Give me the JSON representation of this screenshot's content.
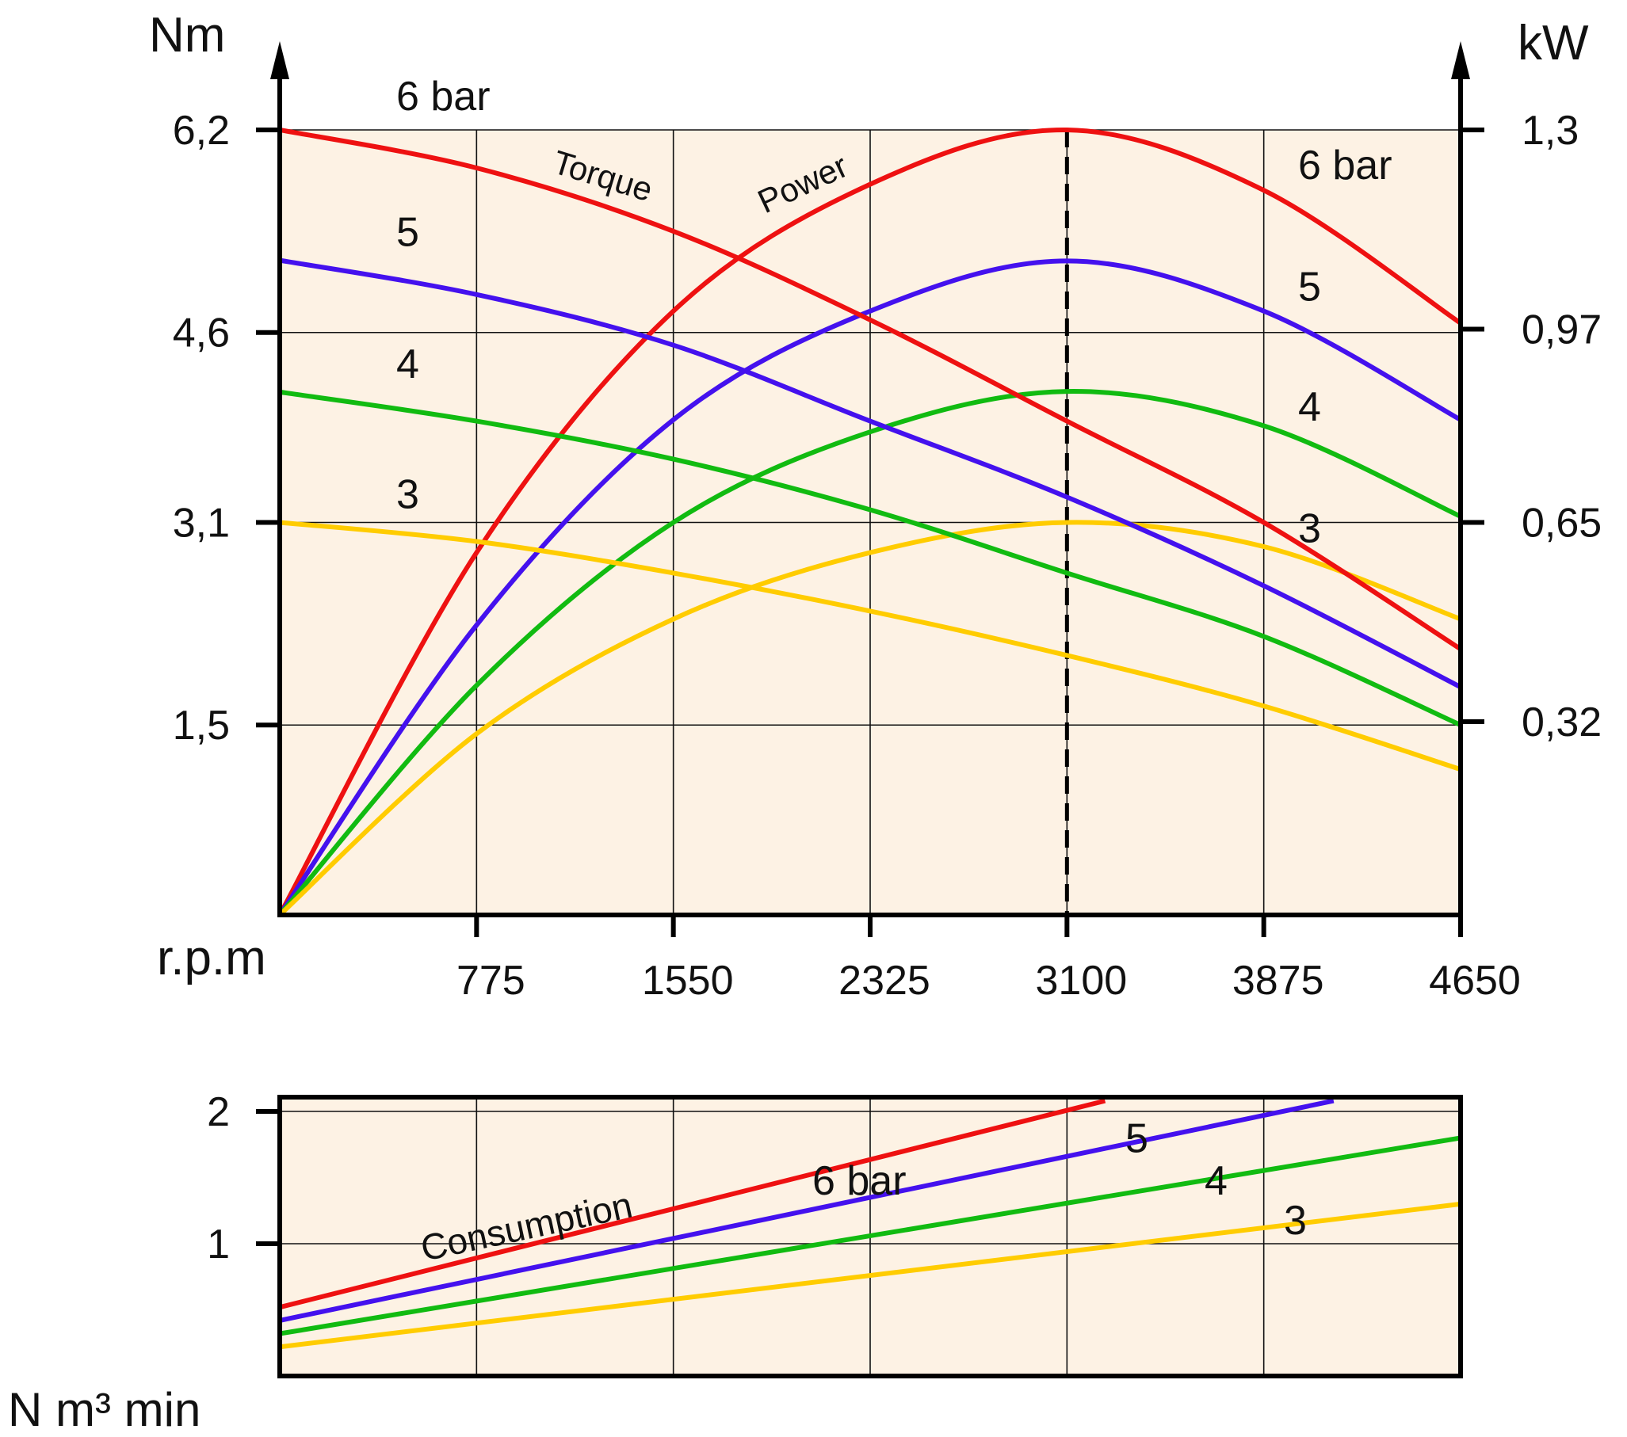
{
  "chart_data": [
    {
      "type": "line",
      "xlabel": "r.p.m",
      "x_ticks": [
        "775",
        "1550",
        "2325",
        "3100",
        "3875",
        "4650"
      ],
      "xlim": [
        0,
        4650
      ],
      "y_left_label": "Nm",
      "y_left_ticks": [
        "6,2",
        "4,6",
        "3,1",
        "1,5"
      ],
      "y_left_tick_values": [
        6.2,
        4.6,
        3.1,
        1.5
      ],
      "ylim_left": [
        0,
        6.2
      ],
      "y_right_label": "kW",
      "y_right_ticks": [
        "1,3",
        "0,97",
        "0,65",
        "0,32"
      ],
      "y_right_tick_values": [
        1.3,
        0.97,
        0.65,
        0.32
      ],
      "ylim_right": [
        0,
        1.3
      ],
      "grid": true,
      "reference_line_x": 3100,
      "curve_labels": {
        "torque": "Torque",
        "power": "Power"
      },
      "torque_series": [
        {
          "name": "6 bar",
          "color": "#ee1111",
          "x": [
            0,
            775,
            1550,
            2325,
            3100,
            3875,
            4650
          ],
          "y": [
            6.2,
            5.9,
            5.4,
            4.7,
            3.9,
            3.1,
            2.1
          ]
        },
        {
          "name": "5",
          "color": "#4411ee",
          "x": [
            0,
            775,
            1550,
            2325,
            3100,
            3875,
            4650
          ],
          "y": [
            5.17,
            4.9,
            4.5,
            3.9,
            3.3,
            2.6,
            1.8
          ]
        },
        {
          "name": "4",
          "color": "#11bb11",
          "x": [
            0,
            775,
            1550,
            2325,
            3100,
            3875,
            4650
          ],
          "y": [
            4.13,
            3.9,
            3.6,
            3.2,
            2.7,
            2.2,
            1.5
          ]
        },
        {
          "name": "3",
          "color": "#ffcc00",
          "x": [
            0,
            775,
            1550,
            2325,
            3100,
            3875,
            4650
          ],
          "y": [
            3.1,
            2.95,
            2.7,
            2.4,
            2.05,
            1.65,
            1.15
          ]
        }
      ],
      "power_series": [
        {
          "name": "6 bar",
          "color": "#ee1111",
          "x": [
            0,
            775,
            1550,
            2325,
            3100,
            3875,
            4650
          ],
          "y": [
            0,
            0.6,
            1.0,
            1.21,
            1.3,
            1.2,
            0.98
          ]
        },
        {
          "name": "5",
          "color": "#4411ee",
          "x": [
            0,
            775,
            1550,
            2325,
            3100,
            3875,
            4650
          ],
          "y": [
            0,
            0.48,
            0.82,
            1.0,
            1.083,
            1.0,
            0.82
          ]
        },
        {
          "name": "4",
          "color": "#11bb11",
          "x": [
            0,
            775,
            1550,
            2325,
            3100,
            3875,
            4650
          ],
          "y": [
            0,
            0.38,
            0.65,
            0.8,
            0.867,
            0.81,
            0.66
          ]
        },
        {
          "name": "3",
          "color": "#ffcc00",
          "x": [
            0,
            775,
            1550,
            2325,
            3100,
            3875,
            4650
          ],
          "y": [
            0,
            0.3,
            0.49,
            0.6,
            0.65,
            0.61,
            0.49
          ]
        }
      ]
    },
    {
      "type": "line",
      "ylabel": "N m³ min",
      "y_ticks": [
        "2",
        "1"
      ],
      "y_tick_values": [
        2,
        1
      ],
      "ylim": [
        0,
        2
      ],
      "xlim": [
        0,
        4650
      ],
      "grid": true,
      "curve_label": "Consumption",
      "series": [
        {
          "name": "6 bar",
          "color": "#ee1111",
          "x": [
            0,
            3250
          ],
          "y": [
            0.52,
            2.08
          ]
        },
        {
          "name": "5",
          "color": "#4411ee",
          "x": [
            0,
            4150
          ],
          "y": [
            0.42,
            2.08
          ]
        },
        {
          "name": "4",
          "color": "#11bb11",
          "x": [
            0,
            4650
          ],
          "y": [
            0.32,
            1.8
          ]
        },
        {
          "name": "3",
          "color": "#ffcc00",
          "x": [
            0,
            4650
          ],
          "y": [
            0.22,
            1.3
          ]
        }
      ]
    }
  ]
}
